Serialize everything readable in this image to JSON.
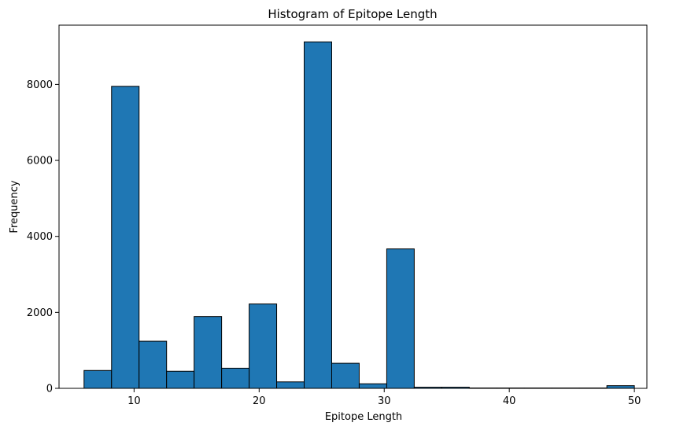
{
  "chart_data": {
    "type": "bar",
    "title": "Histogram of Epitope Length",
    "xlabel": "Epitope Length",
    "ylabel": "Frequency",
    "xlim": [
      4,
      51
    ],
    "ylim": [
      0,
      9560
    ],
    "x_ticks": [
      10,
      20,
      30,
      40,
      50
    ],
    "y_ticks": [
      0,
      2000,
      4000,
      6000,
      8000
    ],
    "bar_color": "#1f77b4",
    "edge_color": "#000000",
    "grid": false,
    "bins": [
      {
        "start": 6.0,
        "end": 8.2,
        "value": 470
      },
      {
        "start": 8.2,
        "end": 10.4,
        "value": 7950
      },
      {
        "start": 10.4,
        "end": 12.6,
        "value": 1240
      },
      {
        "start": 12.6,
        "end": 14.8,
        "value": 450
      },
      {
        "start": 14.8,
        "end": 17.0,
        "value": 1890
      },
      {
        "start": 17.0,
        "end": 19.2,
        "value": 530
      },
      {
        "start": 19.2,
        "end": 21.4,
        "value": 2220
      },
      {
        "start": 21.4,
        "end": 23.6,
        "value": 170
      },
      {
        "start": 23.6,
        "end": 25.8,
        "value": 9120
      },
      {
        "start": 25.8,
        "end": 28.0,
        "value": 660
      },
      {
        "start": 28.0,
        "end": 30.2,
        "value": 120
      },
      {
        "start": 30.2,
        "end": 32.4,
        "value": 3670
      },
      {
        "start": 32.4,
        "end": 34.6,
        "value": 30
      },
      {
        "start": 34.6,
        "end": 36.8,
        "value": 30
      },
      {
        "start": 36.8,
        "end": 39.0,
        "value": 10
      },
      {
        "start": 39.0,
        "end": 41.2,
        "value": 10
      },
      {
        "start": 41.2,
        "end": 43.4,
        "value": 10
      },
      {
        "start": 43.4,
        "end": 45.6,
        "value": 10
      },
      {
        "start": 45.6,
        "end": 47.8,
        "value": 10
      },
      {
        "start": 47.8,
        "end": 50.0,
        "value": 70
      }
    ]
  }
}
